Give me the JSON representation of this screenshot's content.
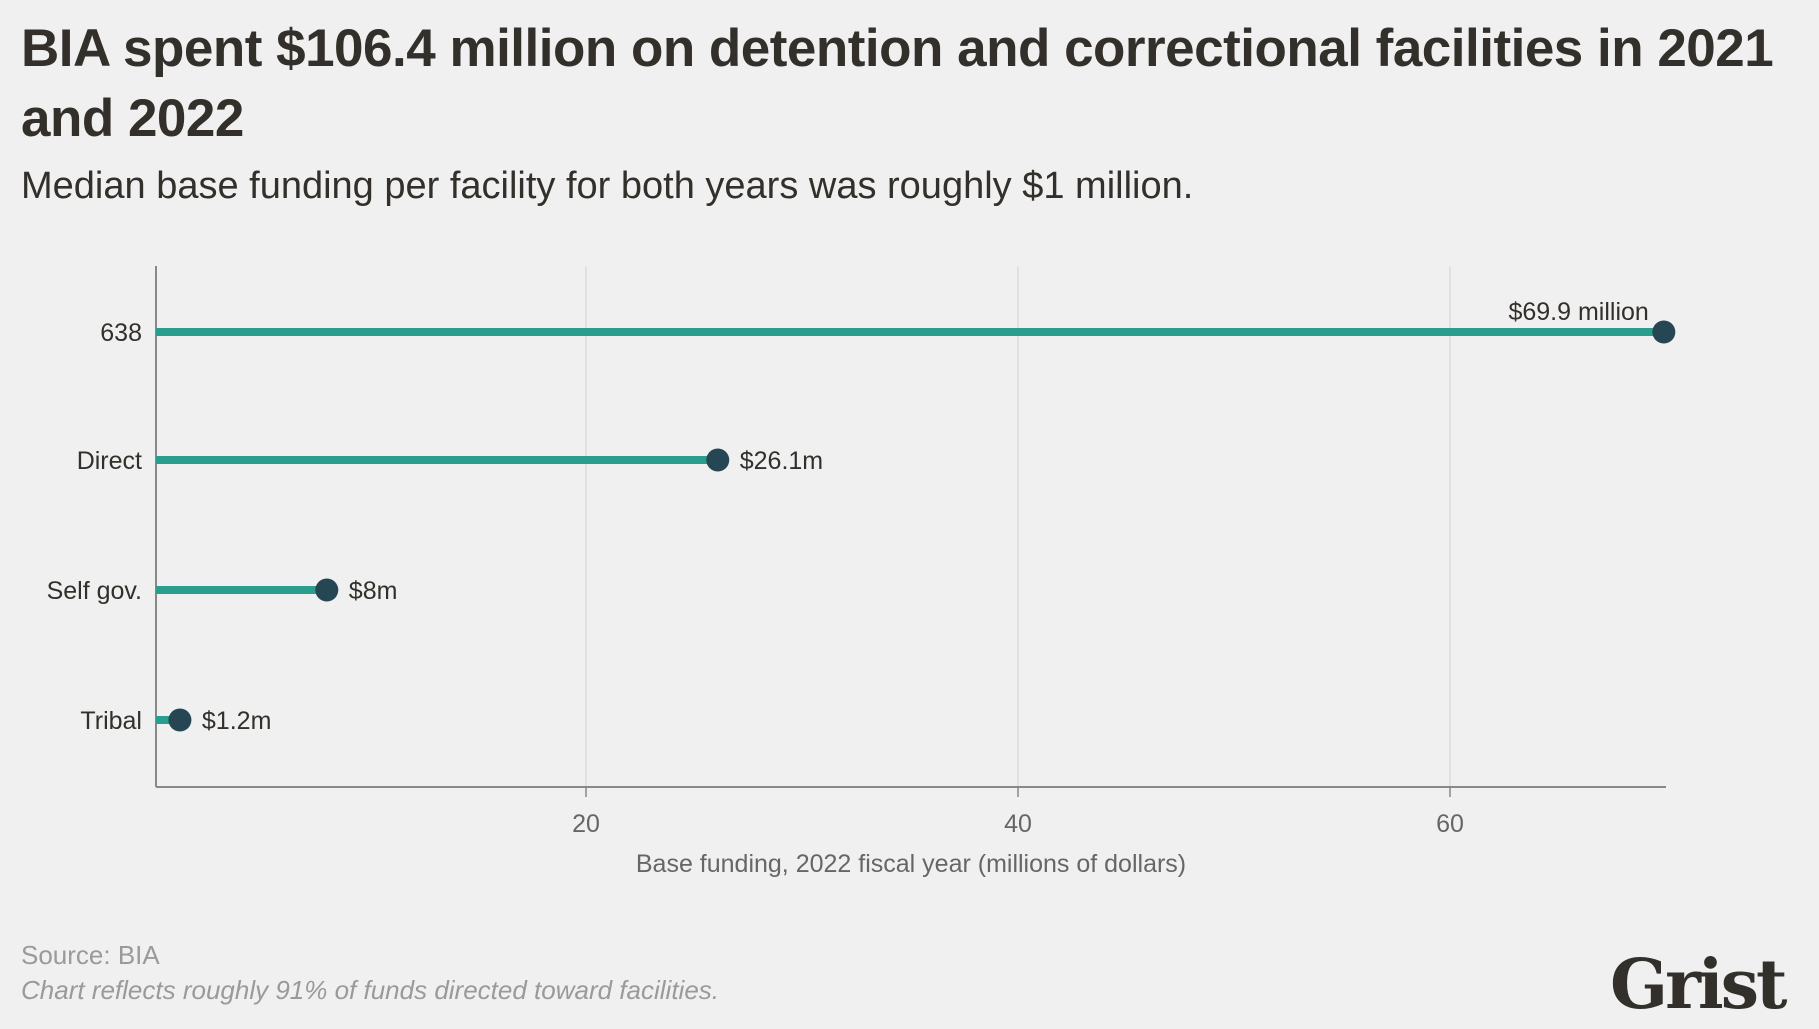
{
  "title": "BIA spent $106.4 million on detention and correctional facilities in 2021 and 2022",
  "subtitle": "Median base funding per facility for both years was roughly $1 million.",
  "source": "Source: BIA",
  "note": "Chart reflects roughly 91% of funds directed toward facilities.",
  "logo": "Grist",
  "colors": {
    "stem": "#2a9d8f",
    "dot": "#264653",
    "background": "#f0f0f0",
    "text": "#33302b"
  },
  "chart_data": {
    "type": "bar",
    "subtype": "lollipop",
    "orientation": "horizontal",
    "categories": [
      "638",
      "Direct",
      "Self gov.",
      "Tribal"
    ],
    "values": [
      69.9,
      26.1,
      8,
      1.2
    ],
    "data_labels": [
      "$69.9 million",
      "$26.1m",
      "$8m",
      "$1.2m"
    ],
    "xlabel": "Base funding, 2022 fiscal year (millions of dollars)",
    "ylabel": "",
    "xlim": [
      0,
      70
    ],
    "xticks": [
      20,
      40,
      60
    ],
    "xtick_labels": [
      "20",
      "40",
      "60"
    ],
    "grid": "vertical"
  }
}
